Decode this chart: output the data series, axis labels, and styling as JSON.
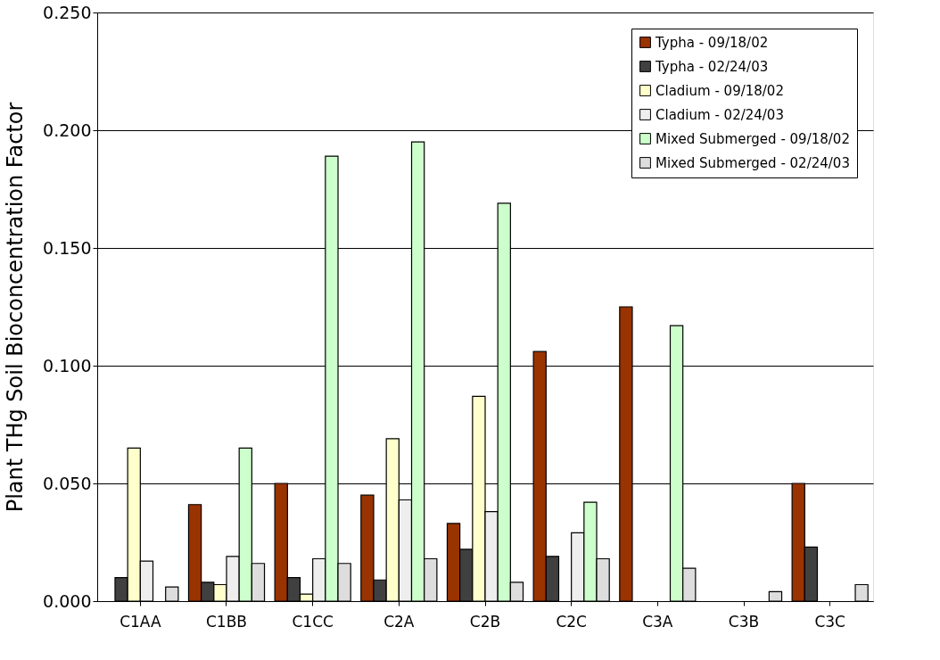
{
  "chart_data": {
    "type": "bar",
    "ylabel": "Plant THg Soil Bioconcentration Factor",
    "categories": [
      "C1AA",
      "C1BB",
      "C1CC",
      "C2A",
      "C2B",
      "C2C",
      "C3A",
      "C3B",
      "C3C"
    ],
    "series": [
      {
        "name": "Typha - 09/18/02",
        "color": "#993300",
        "values": [
          null,
          0.041,
          0.05,
          0.045,
          0.033,
          0.106,
          0.125,
          null,
          0.05
        ]
      },
      {
        "name": "Typha - 02/24/03",
        "color": "#404040",
        "values": [
          0.01,
          0.008,
          0.01,
          0.009,
          0.022,
          0.019,
          null,
          null,
          0.023
        ]
      },
      {
        "name": "Cladium - 09/18/02",
        "color": "#ffffcc",
        "values": [
          0.065,
          0.007,
          0.003,
          0.069,
          0.087,
          null,
          null,
          null,
          null
        ]
      },
      {
        "name": "Cladium - 02/24/03",
        "color": "#eeeeee",
        "values": [
          0.017,
          0.019,
          0.018,
          0.043,
          0.038,
          0.029,
          null,
          null,
          null
        ]
      },
      {
        "name": "Mixed Submerged - 09/18/02",
        "color": "#ccffcc",
        "values": [
          null,
          0.065,
          0.189,
          0.195,
          0.169,
          0.042,
          0.117,
          null,
          null
        ]
      },
      {
        "name": "Mixed Submerged - 02/24/03",
        "color": "#dddddd",
        "values": [
          0.006,
          0.016,
          0.016,
          0.018,
          0.008,
          0.018,
          0.014,
          0.004,
          0.007
        ]
      }
    ],
    "ylim": [
      0,
      0.25
    ],
    "yticks": [
      {
        "value": 0,
        "label": "0.000"
      },
      {
        "value": 0.05,
        "label": "0.050"
      },
      {
        "value": 0.1,
        "label": "0.100"
      },
      {
        "value": 0.15,
        "label": "0.150"
      },
      {
        "value": 0.2,
        "label": "0.200"
      },
      {
        "value": 0.25,
        "label": "0.250"
      }
    ],
    "grid": "y",
    "legend": "top right"
  }
}
